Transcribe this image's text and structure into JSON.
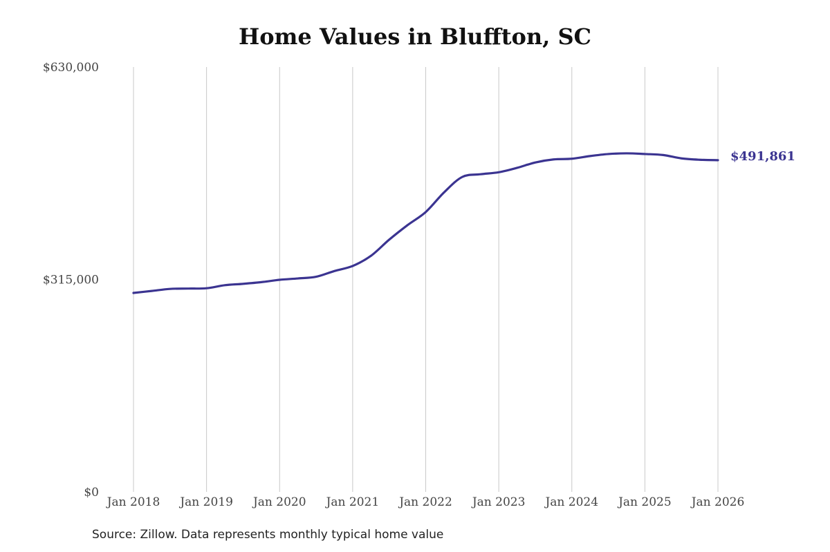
{
  "chart_data": {
    "type": "line",
    "title": "Home Values in Bluffton, SC",
    "xlabel": "",
    "ylabel": "",
    "x_ticks": [
      "Jan 2018",
      "Jan 2019",
      "Jan 2020",
      "Jan 2021",
      "Jan 2022",
      "Jan 2023",
      "Jan 2024",
      "Jan 2025",
      "Jan 2026"
    ],
    "y_ticks": [
      "$0",
      "$315,000",
      "$630,000"
    ],
    "ylim": [
      0,
      630000
    ],
    "xlim": [
      "2018-01",
      "2026-01"
    ],
    "grid": "vertical",
    "line_color": "#3b3491",
    "end_label": "$491,861",
    "series": [
      {
        "values": [
          {
            "x": "2018-01",
            "y": 295000
          },
          {
            "x": "2018-04",
            "y": 298000
          },
          {
            "x": "2018-07",
            "y": 301000
          },
          {
            "x": "2018-10",
            "y": 301500
          },
          {
            "x": "2019-01",
            "y": 302000
          },
          {
            "x": "2019-04",
            "y": 306500
          },
          {
            "x": "2019-07",
            "y": 308500
          },
          {
            "x": "2019-10",
            "y": 311000
          },
          {
            "x": "2020-01",
            "y": 314500
          },
          {
            "x": "2020-04",
            "y": 316500
          },
          {
            "x": "2020-07",
            "y": 319000
          },
          {
            "x": "2020-10",
            "y": 327500
          },
          {
            "x": "2021-01",
            "y": 335000
          },
          {
            "x": "2021-04",
            "y": 350000
          },
          {
            "x": "2021-07",
            "y": 374000
          },
          {
            "x": "2021-10",
            "y": 395500
          },
          {
            "x": "2022-01",
            "y": 415000
          },
          {
            "x": "2022-04",
            "y": 444000
          },
          {
            "x": "2022-07",
            "y": 467000
          },
          {
            "x": "2022-10",
            "y": 471000
          },
          {
            "x": "2023-01",
            "y": 474000
          },
          {
            "x": "2023-04",
            "y": 480500
          },
          {
            "x": "2023-07",
            "y": 488500
          },
          {
            "x": "2023-10",
            "y": 493000
          },
          {
            "x": "2024-01",
            "y": 494000
          },
          {
            "x": "2024-04",
            "y": 498000
          },
          {
            "x": "2024-07",
            "y": 501000
          },
          {
            "x": "2024-10",
            "y": 502000
          },
          {
            "x": "2025-01",
            "y": 501000
          },
          {
            "x": "2025-04",
            "y": 499500
          },
          {
            "x": "2025-07",
            "y": 494500
          },
          {
            "x": "2025-10",
            "y": 492500
          },
          {
            "x": "2026-01",
            "y": 491861
          }
        ]
      }
    ]
  },
  "footer": {
    "source": "Source: Zillow. Data represents monthly typical home value"
  }
}
